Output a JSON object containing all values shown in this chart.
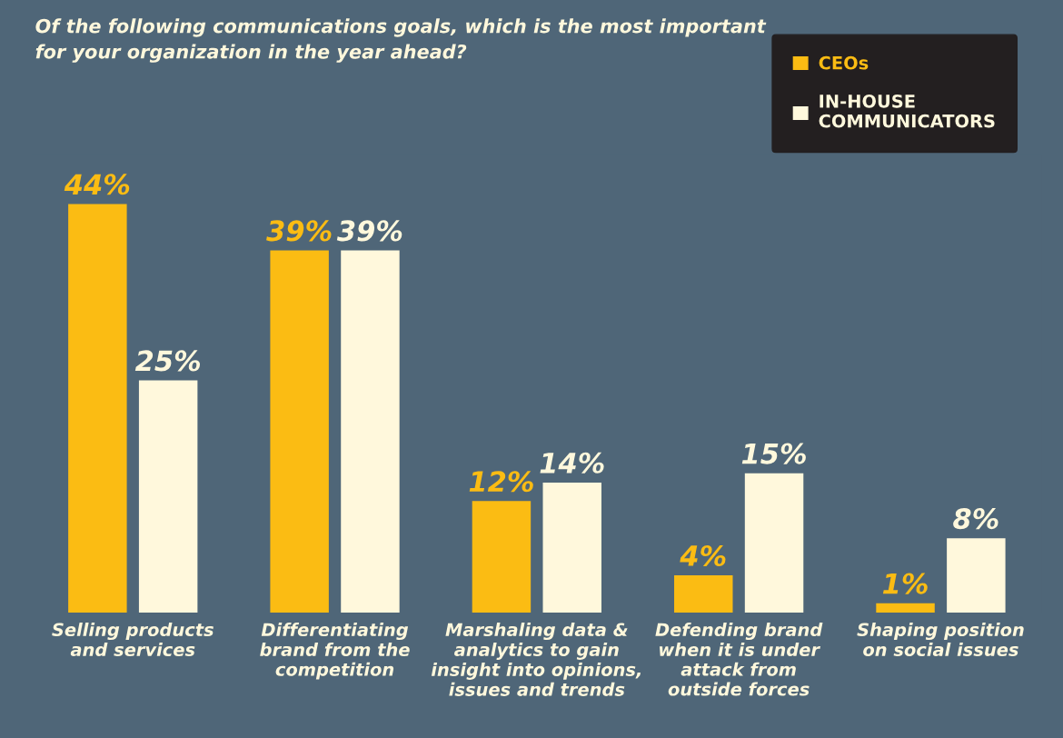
{
  "chart_data": {
    "type": "bar",
    "title": "Of the following communications goals, which is the most important\nfor your organization in the year ahead?",
    "categories": [
      "Selling products\nand services",
      "Differentiating\nbrand from the\ncompetition",
      "Marshaling data &\nanalytics to gain\ninsight into opinions,\nissues and trends",
      "Defending brand\nwhen it is under\nattack from\noutside forces",
      "Shaping position\non social issues"
    ],
    "series": [
      {
        "name": "CEOs",
        "color": "#fbbc13",
        "values": [
          44,
          39,
          12,
          4,
          1
        ],
        "value_labels": [
          "44%",
          "39%",
          "12%",
          "4%",
          "1%"
        ]
      },
      {
        "name": "IN-HOUSE\nCOMMUNICATORS",
        "color": "#fff8dc",
        "values": [
          25,
          39,
          14,
          15,
          8
        ],
        "value_labels": [
          "25%",
          "39%",
          "14%",
          "15%",
          "8%"
        ]
      }
    ],
    "legend": "top right",
    "grid": false,
    "tick_labels": "x"
  }
}
